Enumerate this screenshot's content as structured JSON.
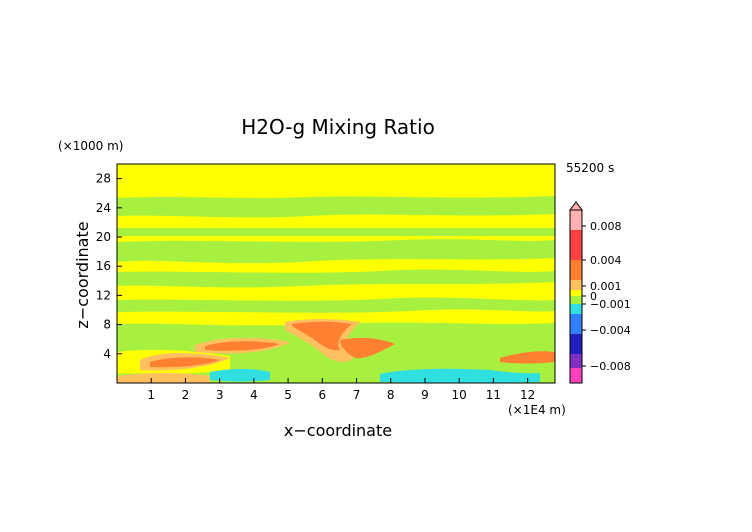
{
  "chart_data": {
    "type": "heatmap",
    "title": "H2O-g Mixing Ratio",
    "xlabel": "x−coordinate",
    "ylabel": "z−coordinate",
    "x_unit": "(×1E4 m)",
    "y_unit": "(×1000 m)",
    "time_label": "55200 s",
    "x_ticks": [
      "1",
      "2",
      "3",
      "4",
      "5",
      "6",
      "7",
      "8",
      "9",
      "10",
      "11",
      "12"
    ],
    "y_ticks": [
      "4",
      "8",
      "12",
      "16",
      "20",
      "24",
      "28"
    ],
    "xlim": [
      0,
      12.8
    ],
    "ylim": [
      0,
      30
    ],
    "colorbar_ticks": [
      "0.008",
      "0.004",
      "0.001",
      "0",
      "−0.001",
      "−0.004",
      "−0.008"
    ],
    "colors": {
      "yellow": "#ffff00",
      "green": "#a8f040",
      "light_orange": "#ffc060",
      "orange": "#ff8030",
      "cyan": "#30e0e0",
      "frame": "#000000"
    },
    "features": [
      {
        "desc": "background band",
        "level": "yellow"
      },
      {
        "desc": "green band z~26",
        "level": "green"
      },
      {
        "desc": "green band z~22",
        "level": "green"
      },
      {
        "desc": "green band z~18",
        "level": "green"
      },
      {
        "desc": "green band z~10-4",
        "level": "green"
      },
      {
        "desc": "orange blob x~3.5 z~5",
        "level": "orange"
      },
      {
        "desc": "orange blob x~6 z~7",
        "level": "orange"
      },
      {
        "desc": "cyan near surface x~9",
        "level": "cyan"
      }
    ]
  }
}
